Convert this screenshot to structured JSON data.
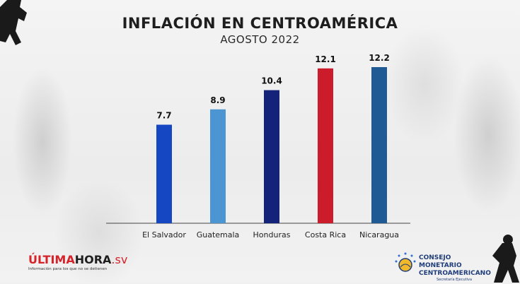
{
  "chart_data": {
    "type": "bar",
    "title": "INFLACIÓN EN CENTROAMÉRICA",
    "subtitle": "AGOSTO 2022",
    "categories": [
      "El Salvador",
      "Guatemala",
      "Honduras",
      "Costa Rica",
      "Nicaragua"
    ],
    "values": [
      7.7,
      8.9,
      10.4,
      12.1,
      12.2
    ],
    "value_labels": [
      "7.7",
      "8.9",
      "10.4",
      "12.1",
      "12.2"
    ],
    "colors": [
      "#1547c2",
      "#4b96d2",
      "#14237a",
      "#cc1b2a",
      "#1f5a95"
    ],
    "ylim": [
      0,
      12.2
    ],
    "xlabel": "",
    "ylabel": "",
    "grid": false,
    "legend": "none"
  },
  "branding": {
    "left_name_part1": "ÚLTIMA",
    "left_name_part2": "HORA",
    "left_name_part3": ".sv",
    "left_tagline": "Información para los que no se detienen",
    "right_line1": "CONSEJO MONETARIO",
    "right_line2": "CENTROAMERICANO",
    "right_line3": "Secretaría Ejecutiva"
  }
}
